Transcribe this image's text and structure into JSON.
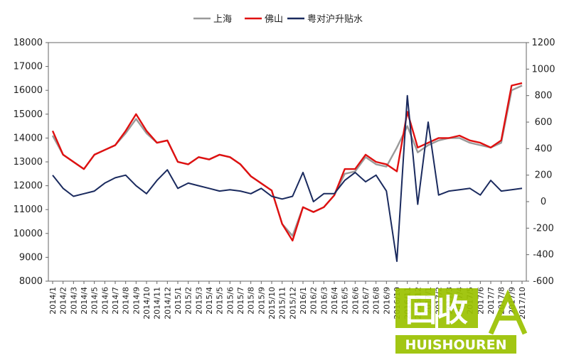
{
  "chart_data": {
    "type": "line",
    "legend": {
      "placement": "top-center"
    },
    "grid": false,
    "y_left": {
      "ylim": [
        8000,
        18000
      ],
      "ticks": [
        8000,
        9000,
        10000,
        11000,
        12000,
        13000,
        14000,
        15000,
        16000,
        17000,
        18000
      ]
    },
    "y_right": {
      "ylim": [
        -600,
        1200
      ],
      "ticks": [
        -600,
        -400,
        -200,
        0,
        200,
        400,
        600,
        800,
        1000,
        1200
      ]
    },
    "x_ticks": [
      "2014/1",
      "2014/2",
      "2014/3",
      "2014/4",
      "2014/5",
      "2014/6",
      "2014/7",
      "2014/8",
      "2014/9",
      "2014/10",
      "2014/11",
      "2014/12",
      "2015/1",
      "2015/2",
      "2015/3",
      "2015/4",
      "2015/5",
      "2015/6",
      "2015/7",
      "2015/8",
      "2015/9",
      "2015/10",
      "2015/11",
      "2015/12",
      "2016/1",
      "2016/2",
      "2016/3",
      "2016/4",
      "2016/5",
      "2016/6",
      "2016/7",
      "2016/8",
      "2016/9",
      "2016/10",
      "2016/11",
      "2016/12",
      "2017/1",
      "2017/2",
      "2017/3",
      "2017/4",
      "2017/5",
      "2017/6",
      "2017/7",
      "2017/8",
      "2017/9",
      "2017/10"
    ],
    "x": [
      "2014/1",
      "2014/2",
      "2014/3",
      "2014/4",
      "2014/5",
      "2014/6",
      "2014/7",
      "2014/8",
      "2014/9",
      "2014/10",
      "2014/11",
      "2014/12",
      "2015/1",
      "2015/2",
      "2015/3",
      "2015/4",
      "2015/5",
      "2015/6",
      "2015/7",
      "2015/8",
      "2015/9",
      "2015/10",
      "2015/11",
      "2015/12",
      "2016/1",
      "2016/2",
      "2016/3",
      "2016/4",
      "2016/5",
      "2016/6",
      "2016/7",
      "2016/8",
      "2016/9",
      "2016/10",
      "2016/11",
      "2016/12",
      "2017/1",
      "2017/2",
      "2017/3",
      "2017/4",
      "2017/5",
      "2017/6",
      "2017/7",
      "2017/8",
      "2017/9",
      "2017/10"
    ],
    "series": [
      {
        "name": "上海",
        "axis": "left",
        "color": "#9a9a9a",
        "values": [
          14100,
          13300,
          13000,
          12700,
          13300,
          13500,
          13700,
          14200,
          14800,
          14200,
          13800,
          13900,
          13000,
          12900,
          13200,
          13100,
          13300,
          13200,
          12900,
          12400,
          12100,
          11800,
          10400,
          9900,
          11100,
          10900,
          11100,
          11600,
          12500,
          12600,
          13200,
          12900,
          12800,
          13600,
          14500,
          13400,
          13700,
          13900,
          14000,
          14000,
          13800,
          13700,
          13600,
          13800,
          16000,
          16200
        ]
      },
      {
        "name": "佛山",
        "axis": "left",
        "color": "#e01010",
        "values": [
          14300,
          13300,
          13000,
          12700,
          13300,
          13500,
          13700,
          14300,
          15000,
          14300,
          13800,
          13900,
          13000,
          12900,
          13200,
          13100,
          13300,
          13200,
          12900,
          12400,
          12100,
          11800,
          10400,
          9700,
          11100,
          10900,
          11100,
          11600,
          12700,
          12700,
          13300,
          13000,
          12900,
          12600,
          15100,
          13600,
          13800,
          14000,
          14000,
          14100,
          13900,
          13800,
          13600,
          13900,
          16200,
          16300
        ]
      },
      {
        "name": "粤对沪升贴水",
        "axis": "right",
        "color": "#1a2a5e",
        "values": [
          200,
          100,
          40,
          60,
          80,
          140,
          180,
          200,
          120,
          60,
          160,
          240,
          100,
          140,
          120,
          100,
          80,
          90,
          80,
          60,
          100,
          40,
          20,
          40,
          220,
          0,
          60,
          60,
          160,
          220,
          150,
          200,
          80,
          -450,
          800,
          -20,
          600,
          50,
          80,
          90,
          100,
          50,
          160,
          80,
          90,
          100
        ]
      }
    ]
  },
  "watermark": {
    "text": "回收",
    "subtext": "HUISHOUREN"
  }
}
